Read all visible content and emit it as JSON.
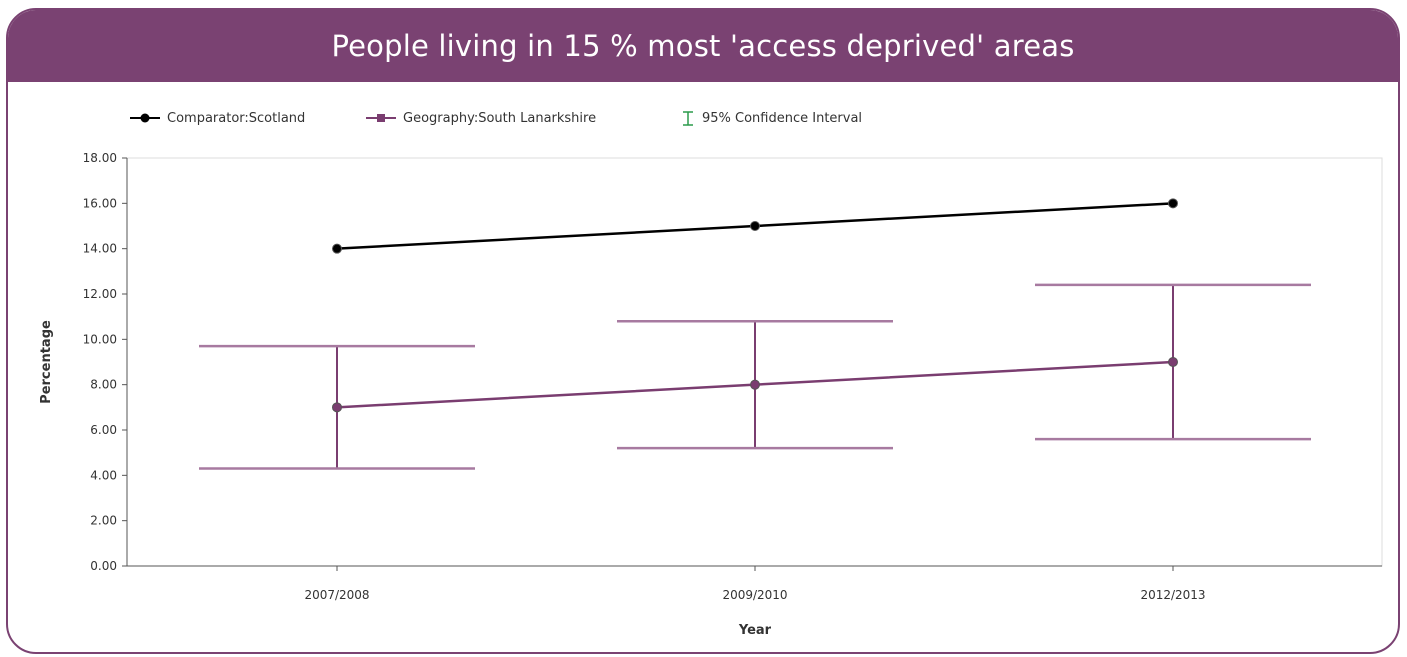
{
  "header": {
    "title": "People living in 15 % most 'access deprived' areas"
  },
  "colors": {
    "header_bg": "#7a4272",
    "comparator": "#000000",
    "geography": "#7a3d70",
    "ci_legend_icon": "#2a9a4a"
  },
  "legend": {
    "comparator_label": "Comparator:Scotland",
    "geography_label": "Geography:South Lanarkshire",
    "ci_label": "95% Confidence Interval"
  },
  "chart_data": {
    "type": "line",
    "title": "",
    "xlabel": "Year",
    "ylabel": "Percentage",
    "categories": [
      "2007/2008",
      "2009/2010",
      "2012/2013"
    ],
    "ylim": [
      0,
      18
    ],
    "yticks": [
      "0.00",
      "2.00",
      "4.00",
      "6.00",
      "8.00",
      "10.00",
      "12.00",
      "14.00",
      "16.00",
      "18.00"
    ],
    "grid": false,
    "legend_position": "top-left",
    "series": [
      {
        "name": "Comparator:Scotland",
        "values": [
          14.0,
          15.0,
          16.0
        ]
      },
      {
        "name": "Geography:South Lanarkshire",
        "values": [
          7.0,
          8.0,
          9.0
        ],
        "ci_lower": [
          4.3,
          5.2,
          5.6
        ],
        "ci_upper": [
          9.7,
          10.8,
          12.4
        ]
      }
    ]
  }
}
